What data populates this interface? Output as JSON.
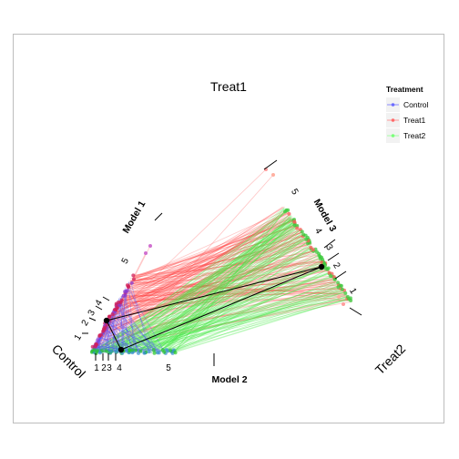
{
  "chart_data": {
    "type": "scatter",
    "subtype": "ternary-like parallel coordinate projection",
    "title": "",
    "vertex_labels": {
      "top": "Treat1",
      "left": "Control",
      "right": "Treat2"
    },
    "legend": {
      "title": "Treatment",
      "placement": "top-right",
      "entries": [
        {
          "name": "Control",
          "color": "#6b6bff"
        },
        {
          "name": "Treat1",
          "color": "#ff6b6b"
        },
        {
          "name": "Treat2",
          "color": "#7aff7a"
        }
      ]
    },
    "axes": [
      {
        "name": "Model 1",
        "ticks": [
          "1",
          "2",
          "3",
          "4",
          "5"
        ]
      },
      {
        "name": "Model 2",
        "ticks": [
          "1",
          "2",
          "3",
          "4",
          "5"
        ]
      },
      {
        "name": "Model 3",
        "ticks": [
          "1",
          "2",
          "3",
          "4",
          "5"
        ]
      }
    ],
    "grid": false,
    "colors": {
      "control": "#5050ff",
      "treat1": "#ff3b3b",
      "treat2": "#45e845",
      "frame": "#bdbdbd",
      "highlight": "#000000"
    }
  }
}
